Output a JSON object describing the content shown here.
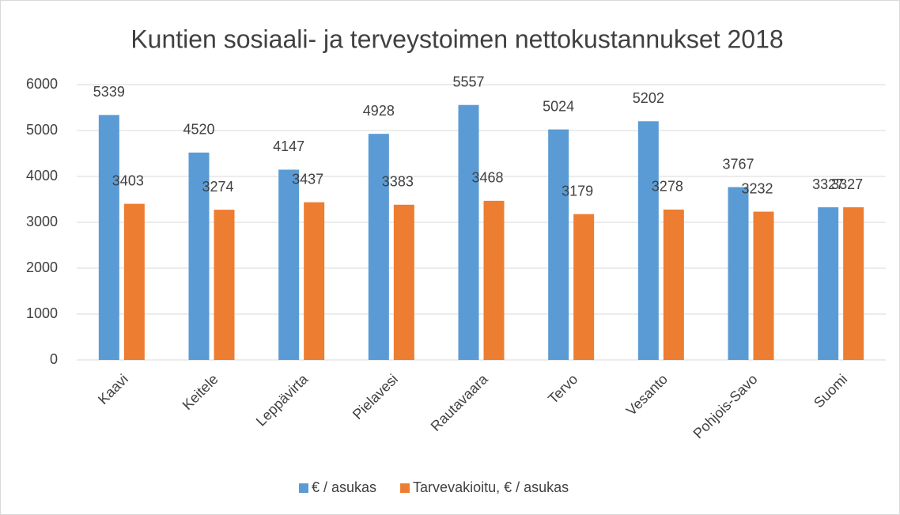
{
  "chart_data": {
    "type": "bar",
    "title": "Kuntien sosiaali- ja terveystoimen nettokustannukset 2018",
    "categories": [
      "Kaavi",
      "Keitele",
      "Leppävirta",
      "Pielavesi",
      "Rautavaara",
      "Tervo",
      "Vesanto",
      "Pohjois-Savo",
      "Suomi"
    ],
    "series": [
      {
        "name": "€ / asukas",
        "color": "#5b9bd5",
        "values": [
          5339,
          4520,
          4147,
          4928,
          5557,
          5024,
          5202,
          3767,
          3327
        ]
      },
      {
        "name": "Tarvevakioitu, € / asukas",
        "color": "#ed7d31",
        "values": [
          3403,
          3274,
          3437,
          3383,
          3468,
          3179,
          3278,
          3232,
          3327
        ]
      }
    ],
    "ylim": [
      0,
      6000
    ],
    "yticks": [
      0,
      1000,
      2000,
      3000,
      4000,
      5000,
      6000
    ],
    "grid": true,
    "legend": "bottom"
  }
}
